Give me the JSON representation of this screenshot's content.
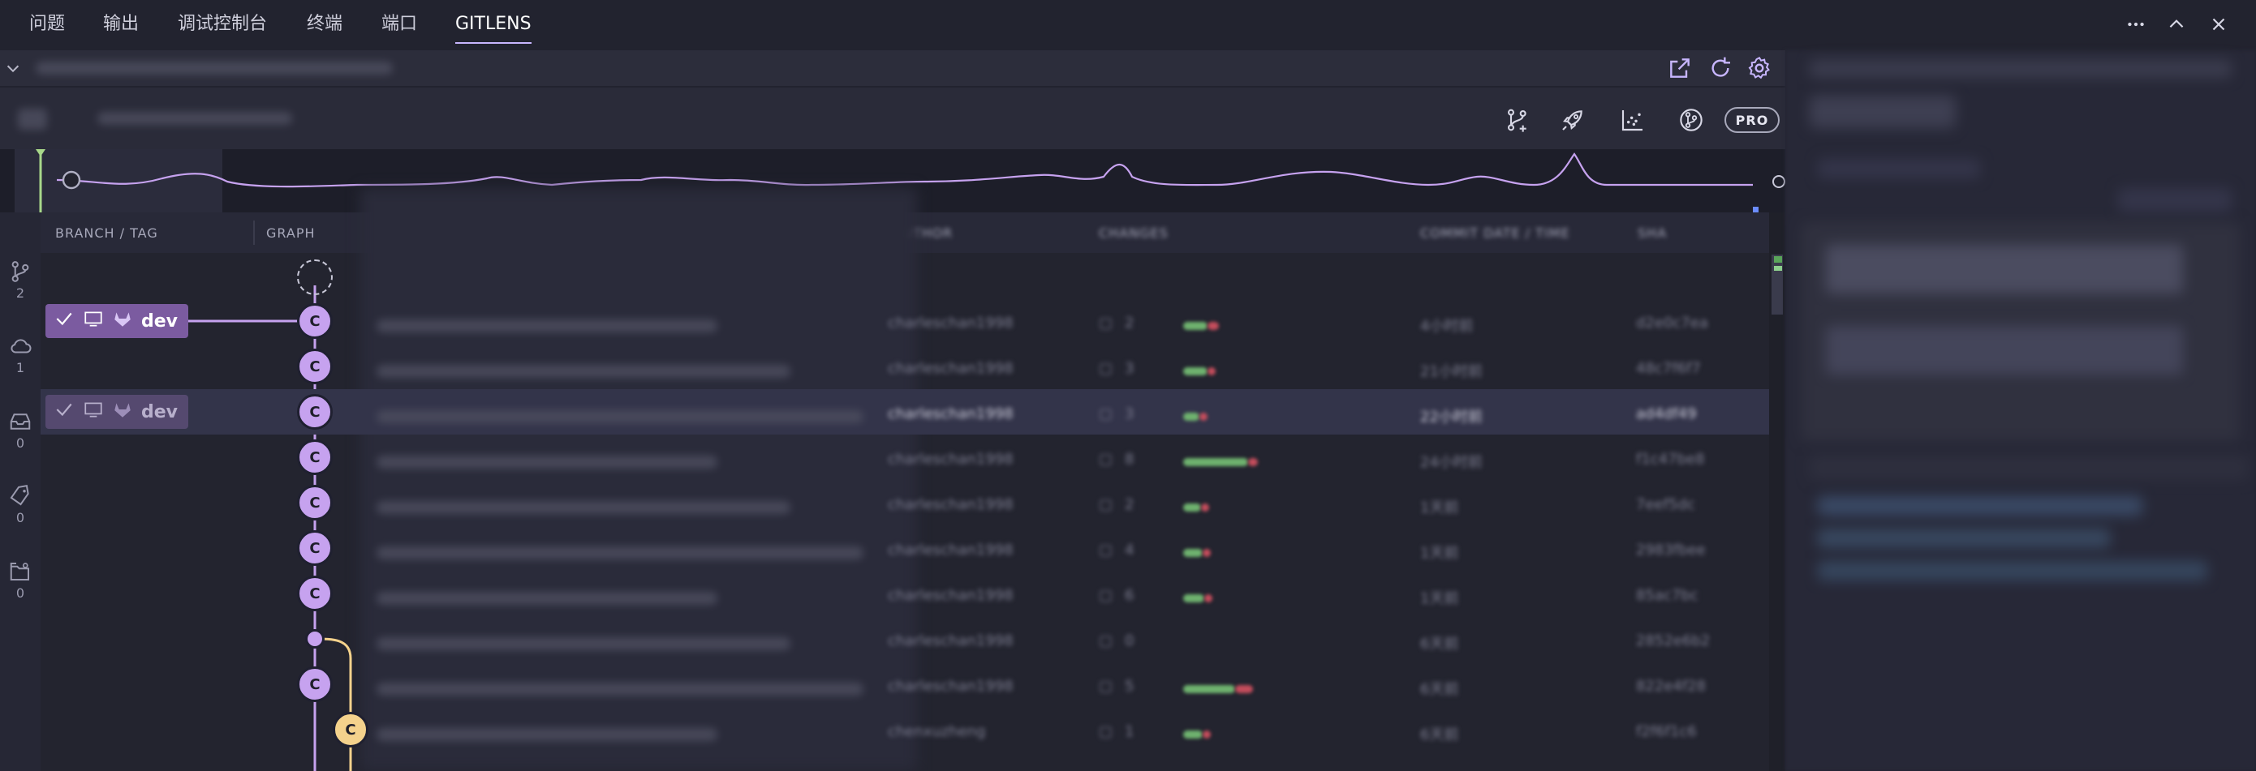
{
  "panel": {
    "tabs": [
      {
        "label": "问题"
      },
      {
        "label": "输出"
      },
      {
        "label": "调试控制台"
      },
      {
        "label": "终端"
      },
      {
        "label": "端口"
      },
      {
        "label": "GITLENS",
        "active": true
      }
    ],
    "window_controls": [
      "more-icon",
      "maximize-icon",
      "close-icon"
    ]
  },
  "toolbar": {
    "header_icons": [
      "open-external-icon",
      "refresh-icon",
      "settings-icon"
    ],
    "actions": [
      "create-branch-icon",
      "launchpad-icon",
      "graph-chart-icon",
      "fetch-icon"
    ],
    "pro_label": "PRO"
  },
  "activity": {
    "items": [
      {
        "icon": "branch-icon",
        "count": "2"
      },
      {
        "icon": "cloud-icon",
        "count": "1"
      },
      {
        "icon": "stash-icon",
        "count": "0"
      },
      {
        "icon": "tag-icon",
        "count": "0"
      },
      {
        "icon": "worktree-icon",
        "count": "0"
      }
    ]
  },
  "columns": {
    "branch_tag": "BRANCH / TAG",
    "graph": "GRAPH",
    "author": "AUTHOR",
    "changes": "CHANGES",
    "date_time": "COMMIT DATE / TIME",
    "sha": "SHA"
  },
  "branches": [
    {
      "name": "dev",
      "row": 1,
      "style": "primary"
    },
    {
      "name": "dev",
      "row": 3,
      "style": "dim"
    }
  ],
  "commits": [
    {
      "node": "C",
      "author": "charleschan1998",
      "files": "2",
      "time": "4小时前",
      "sha": "d2e0c7ea"
    },
    {
      "node": "C",
      "author": "charleschan1998",
      "files": "3",
      "time": "21小时前",
      "sha": "48c7f6f7"
    },
    {
      "node": "C",
      "author": "charleschan1998",
      "files": "3",
      "time": "22小时前",
      "sha": "ad4df49",
      "selected": true
    },
    {
      "node": "C",
      "author": "charleschan1998",
      "files": "8",
      "time": "24小时前",
      "sha": "f1c47be8"
    },
    {
      "node": "C",
      "author": "charleschan1998",
      "files": "2",
      "time": "1天前",
      "sha": "7eef5dc"
    },
    {
      "node": "C",
      "author": "charleschan1998",
      "files": "4",
      "time": "1天前",
      "sha": "2983fbee"
    },
    {
      "node": "C",
      "author": "charleschan1998",
      "files": "6",
      "time": "1天前",
      "sha": "85ac7bc"
    },
    {
      "node": "",
      "author": "charleschan1998",
      "files": "0",
      "time": "6天前",
      "sha": "2852e6b2"
    },
    {
      "node": "C",
      "author": "charleschan1998",
      "files": "5",
      "time": "6天前",
      "sha": "822e4f28"
    },
    {
      "node": "C",
      "author": "chenxuzheng",
      "files": "1",
      "time": "6天前",
      "sha": "f2f6f1c6"
    }
  ],
  "colors": {
    "accent_purple": "#c6a2ef",
    "accent_yellow": "#f4d28c",
    "branch_badge": "#7b5ba0",
    "background": "#22232f"
  }
}
